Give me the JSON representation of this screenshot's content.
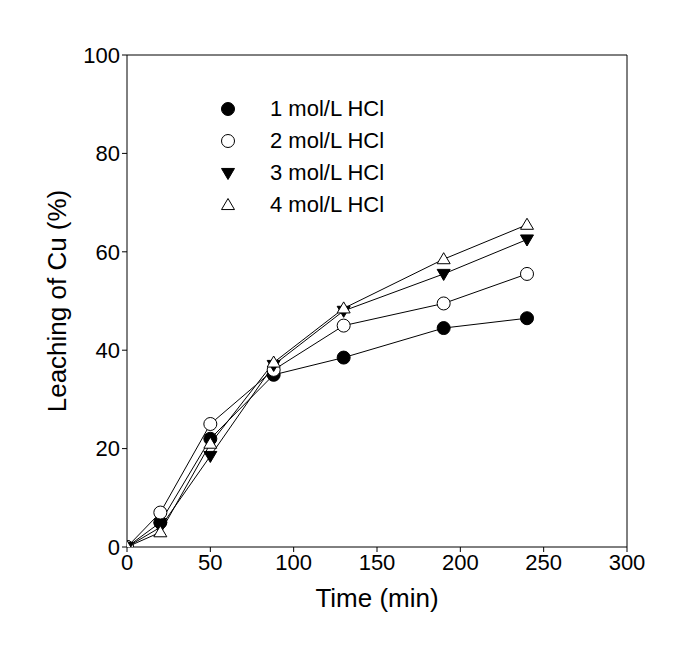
{
  "chart_data": {
    "type": "line",
    "x_label": "Time (min)",
    "y_label": "Leaching of Cu (%)",
    "x": [
      0,
      20,
      50,
      88,
      130,
      190,
      240
    ],
    "series": [
      {
        "name": "1 mol/L HCl",
        "color": "#000000",
        "marker": "circle_filled",
        "values": [
          0,
          5,
          22,
          35,
          38.5,
          44.5,
          46.5
        ]
      },
      {
        "name": "2 mol/L HCl",
        "color": "#000000",
        "marker": "circle_open",
        "values": [
          0,
          7,
          25,
          36,
          45,
          49.5,
          55.5
        ]
      },
      {
        "name": "3 mol/L HCl",
        "color": "#000000",
        "marker": "triangle_down_filled",
        "values": [
          0,
          4,
          18.5,
          37,
          48,
          55.5,
          62.5
        ]
      },
      {
        "name": "4 mol/L HCl",
        "color": "#000000",
        "marker": "triangle_up_open",
        "values": [
          0,
          3,
          21,
          37.5,
          48.5,
          58.5,
          65.5
        ]
      }
    ],
    "xlim": [
      0,
      300
    ],
    "xticks": [
      0,
      50,
      100,
      150,
      200,
      250,
      300
    ],
    "ylim": [
      0,
      100
    ],
    "yticks": [
      0,
      20,
      40,
      60,
      80,
      100
    ],
    "grid": false,
    "legend": "upper left"
  }
}
